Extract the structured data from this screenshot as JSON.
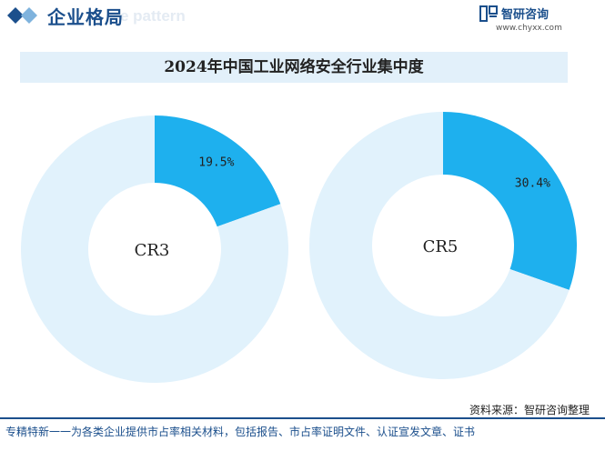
{
  "header": {
    "section_title": "企业格局",
    "bg_word": "e pattern",
    "logo_name": "智研咨询",
    "logo_url": "www.chyxx.com"
  },
  "chart_data": [
    {
      "type": "pie",
      "title": "2024年中国工业网络安全行业集中度",
      "center_label": "CR3",
      "slices": [
        {
          "label": "CR3",
          "value": 19.5,
          "value_label": "19.5%",
          "color": "#1eb0ee"
        },
        {
          "label": "",
          "value": 80.5,
          "value_label": "",
          "color": "#e1f2fc"
        }
      ]
    },
    {
      "type": "pie",
      "center_label": "CR5",
      "slices": [
        {
          "label": "CR5",
          "value": 30.4,
          "value_label": "30.4%",
          "color": "#1eb0ee"
        },
        {
          "label": "",
          "value": 69.6,
          "value_label": "",
          "color": "#e1f2fc"
        }
      ]
    }
  ],
  "footer": {
    "source": "资料来源：智研咨询整理",
    "note": "专精特新一一为各类企业提供市占率相关材料，包括报告、市占率证明文件、认证宣发文章、证书"
  },
  "colors": {
    "brand": "#1b4f8c",
    "highlight_slice": "#1eb0ee",
    "rest_slice": "#e1f2fc",
    "title_band": "#e2f0fa"
  }
}
